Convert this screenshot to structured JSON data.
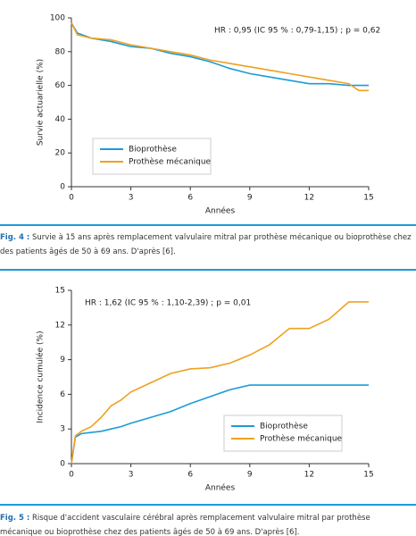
{
  "chart_data": [
    {
      "type": "line",
      "annotation": "HR : 0,95 (IC 95 % : 0,79-1,15) ; p = 0,62",
      "ylabel": "Survie actuarielle (%)",
      "xlabel": "Années",
      "x": [
        0,
        0.3,
        1,
        2,
        3,
        4,
        5,
        6,
        7,
        8,
        9,
        10,
        11,
        12,
        13,
        14,
        14.5,
        15
      ],
      "series": [
        {
          "name": "Bioprothèse",
          "color": "#1b9bd7",
          "values": [
            97,
            91,
            88,
            86,
            83,
            82,
            79,
            77,
            74,
            70,
            67,
            65,
            63,
            61,
            61,
            60,
            60,
            60
          ]
        },
        {
          "name": "Prothèse mécanique",
          "color": "#f0a020",
          "values": [
            97,
            90,
            88,
            87,
            84,
            82,
            80,
            78,
            75,
            73,
            71,
            69,
            67,
            65,
            63,
            61,
            57,
            57
          ]
        }
      ],
      "xlim": [
        0,
        15
      ],
      "xticks": [
        0,
        3,
        6,
        9,
        12,
        15
      ],
      "ylim": [
        0,
        100
      ],
      "yticks": [
        0,
        20,
        40,
        60,
        80,
        100
      ],
      "legend": "lower left",
      "caption_label": "Fig. 4 :",
      "caption": "Survie à 15 ans après remplacement valvulaire mitral par prothèse mécanique ou bioprothèse chez des patients âgés de 50 à 69 ans. D'après [6]."
    },
    {
      "type": "line",
      "annotation": "HR : 1,62 (IC 95 % : 1,10-2,39) ; p = 0,01",
      "ylabel": "Incidence cumulée (%)",
      "xlabel": "Années",
      "x": [
        0,
        0.2,
        0.5,
        1,
        1.5,
        2,
        2.5,
        3,
        4,
        5,
        6,
        7,
        8,
        9,
        10,
        11,
        12,
        13,
        14,
        15
      ],
      "series": [
        {
          "name": "Bioprothèse",
          "color": "#1b9bd7",
          "values": [
            0,
            2.3,
            2.6,
            2.7,
            2.8,
            3,
            3.2,
            3.5,
            4,
            4.5,
            5.2,
            5.8,
            6.4,
            6.8,
            6.8,
            6.8,
            6.8,
            6.8,
            6.8,
            6.8
          ]
        },
        {
          "name": "Prothèse mécanique",
          "color": "#f0a020",
          "values": [
            0,
            2.4,
            2.8,
            3.2,
            4,
            5,
            5.5,
            6.2,
            7,
            7.8,
            8.2,
            8.3,
            8.7,
            9.4,
            10.3,
            11.7,
            11.7,
            12.5,
            14,
            14
          ]
        }
      ],
      "xlim": [
        0,
        15
      ],
      "xticks": [
        0,
        3,
        6,
        9,
        12,
        15
      ],
      "ylim": [
        0,
        15
      ],
      "yticks": [
        0,
        3,
        6,
        9,
        12,
        15
      ],
      "legend": "lower right",
      "caption_label": "Fig. 5 :",
      "caption": "Risque d'accident vasculaire cérébral après remplacement valvulaire mitral par prothèse mécanique ou bioprothèse chez des patients âgés de 50 à 69 ans. D'après [6]."
    }
  ]
}
